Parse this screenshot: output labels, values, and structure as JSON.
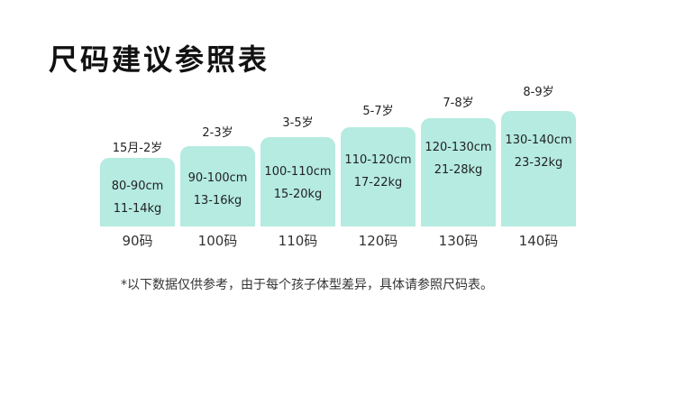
{
  "title": "尺码建议参照表",
  "sizes": [
    {
      "age": "15月-2岁",
      "height": "80-90cm",
      "weight": "11-14kg",
      "size": "90码"
    },
    {
      "age": "2-3岁",
      "height": "90-100cm",
      "weight": "13-16kg",
      "size": "100码"
    },
    {
      "age": "3-5岁",
      "height": "100-110cm",
      "weight": "15-20kg",
      "size": "110码"
    },
    {
      "age": "5-7岁",
      "height": "110-120cm",
      "weight": "17-22kg",
      "size": "120码"
    },
    {
      "age": "7-8岁",
      "height": "120-130cm",
      "weight": "21-28kg",
      "size": "130码"
    },
    {
      "age": "8-9岁",
      "height": "130-140cm",
      "weight": "23-32kg",
      "size": "140码"
    }
  ],
  "footnote": "*以下数据仅供参考，由于每个孩子体型差异，具体请参照尺码表。",
  "colors": {
    "card": "#b5ebe1",
    "text": "#222222"
  }
}
